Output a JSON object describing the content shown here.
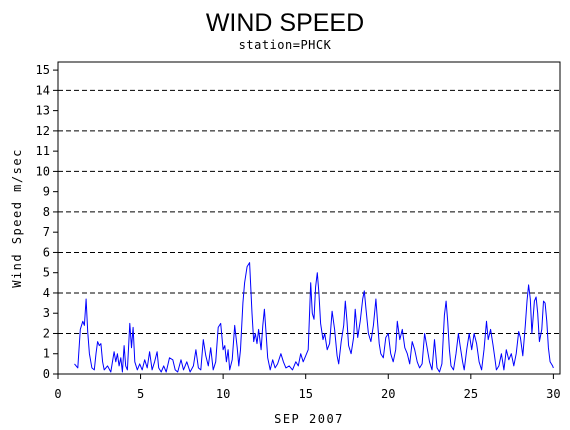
{
  "chart_data": {
    "type": "line",
    "title": "WIND SPEED",
    "subtitle": "station=PHCK",
    "xlabel": "SEP 2007",
    "ylabel": "Wind Speed m/sec",
    "xlim": [
      0,
      30.4
    ],
    "ylim": [
      0,
      15.4
    ],
    "x_ticks": [
      0,
      5,
      10,
      15,
      20,
      25,
      30
    ],
    "y_ticks": [
      0,
      1,
      2,
      3,
      4,
      5,
      6,
      7,
      8,
      9,
      10,
      11,
      12,
      13,
      14,
      15
    ],
    "reference_lines": [
      2,
      4,
      6,
      8,
      10,
      12,
      14
    ],
    "grid": "dashed horizontal reference lines at even values",
    "series": [
      {
        "color": "#0000ff",
        "points": [
          [
            1.0,
            0.5
          ],
          [
            1.2,
            0.3
          ],
          [
            1.35,
            2.2
          ],
          [
            1.5,
            2.6
          ],
          [
            1.6,
            2.4
          ],
          [
            1.7,
            3.7
          ],
          [
            1.8,
            2.1
          ],
          [
            1.9,
            1.0
          ],
          [
            2.05,
            0.3
          ],
          [
            2.2,
            0.2
          ],
          [
            2.3,
            1.0
          ],
          [
            2.4,
            1.6
          ],
          [
            2.5,
            1.4
          ],
          [
            2.6,
            1.5
          ],
          [
            2.7,
            0.6
          ],
          [
            2.8,
            0.2
          ],
          [
            3.0,
            0.4
          ],
          [
            3.2,
            0.1
          ],
          [
            3.4,
            1.1
          ],
          [
            3.5,
            0.6
          ],
          [
            3.6,
            1.0
          ],
          [
            3.7,
            0.4
          ],
          [
            3.8,
            0.8
          ],
          [
            3.9,
            0.1
          ],
          [
            4.0,
            1.4
          ],
          [
            4.1,
            0.4
          ],
          [
            4.2,
            0.2
          ],
          [
            4.35,
            2.5
          ],
          [
            4.45,
            1.3
          ],
          [
            4.55,
            2.3
          ],
          [
            4.65,
            0.6
          ],
          [
            4.8,
            0.2
          ],
          [
            4.95,
            0.5
          ],
          [
            5.1,
            0.2
          ],
          [
            5.25,
            0.7
          ],
          [
            5.4,
            0.3
          ],
          [
            5.55,
            1.1
          ],
          [
            5.7,
            0.2
          ],
          [
            5.85,
            0.6
          ],
          [
            6.0,
            1.1
          ],
          [
            6.1,
            0.3
          ],
          [
            6.25,
            0.1
          ],
          [
            6.4,
            0.4
          ],
          [
            6.55,
            0.1
          ],
          [
            6.75,
            0.8
          ],
          [
            6.95,
            0.7
          ],
          [
            7.1,
            0.2
          ],
          [
            7.25,
            0.1
          ],
          [
            7.45,
            0.7
          ],
          [
            7.6,
            0.2
          ],
          [
            7.8,
            0.6
          ],
          [
            8.0,
            0.1
          ],
          [
            8.2,
            0.4
          ],
          [
            8.35,
            1.2
          ],
          [
            8.5,
            0.3
          ],
          [
            8.65,
            0.2
          ],
          [
            8.8,
            1.7
          ],
          [
            8.95,
            0.9
          ],
          [
            9.1,
            0.4
          ],
          [
            9.25,
            1.3
          ],
          [
            9.4,
            0.2
          ],
          [
            9.55,
            0.6
          ],
          [
            9.7,
            2.3
          ],
          [
            9.85,
            2.5
          ],
          [
            10.0,
            1.2
          ],
          [
            10.1,
            1.4
          ],
          [
            10.2,
            0.6
          ],
          [
            10.3,
            1.2
          ],
          [
            10.4,
            0.2
          ],
          [
            10.55,
            0.7
          ],
          [
            10.7,
            2.4
          ],
          [
            10.85,
            1.3
          ],
          [
            10.95,
            0.4
          ],
          [
            11.05,
            1.2
          ],
          [
            11.2,
            3.5
          ],
          [
            11.3,
            4.5
          ],
          [
            11.45,
            5.3
          ],
          [
            11.6,
            5.5
          ],
          [
            11.75,
            3.0
          ],
          [
            11.85,
            1.6
          ],
          [
            11.95,
            2.0
          ],
          [
            12.05,
            1.5
          ],
          [
            12.15,
            2.2
          ],
          [
            12.3,
            1.2
          ],
          [
            12.4,
            2.4
          ],
          [
            12.5,
            3.2
          ],
          [
            12.6,
            2.0
          ],
          [
            12.7,
            0.8
          ],
          [
            12.85,
            0.2
          ],
          [
            13.0,
            0.7
          ],
          [
            13.15,
            0.3
          ],
          [
            13.3,
            0.5
          ],
          [
            13.5,
            1.0
          ],
          [
            13.65,
            0.6
          ],
          [
            13.8,
            0.3
          ],
          [
            14.0,
            0.4
          ],
          [
            14.2,
            0.2
          ],
          [
            14.4,
            0.6
          ],
          [
            14.55,
            0.4
          ],
          [
            14.7,
            1.0
          ],
          [
            14.85,
            0.6
          ],
          [
            15.0,
            0.9
          ],
          [
            15.15,
            1.2
          ],
          [
            15.3,
            4.5
          ],
          [
            15.4,
            3.0
          ],
          [
            15.5,
            2.7
          ],
          [
            15.6,
            4.3
          ],
          [
            15.7,
            5.0
          ],
          [
            15.8,
            4.0
          ],
          [
            15.9,
            2.5
          ],
          [
            16.05,
            1.7
          ],
          [
            16.15,
            2.0
          ],
          [
            16.3,
            1.2
          ],
          [
            16.45,
            1.5
          ],
          [
            16.6,
            3.1
          ],
          [
            16.75,
            2.2
          ],
          [
            16.9,
            0.9
          ],
          [
            17.0,
            0.5
          ],
          [
            17.15,
            1.6
          ],
          [
            17.3,
            2.4
          ],
          [
            17.4,
            3.6
          ],
          [
            17.5,
            2.6
          ],
          [
            17.6,
            1.4
          ],
          [
            17.75,
            1.0
          ],
          [
            17.9,
            1.8
          ],
          [
            18.0,
            3.2
          ],
          [
            18.15,
            1.8
          ],
          [
            18.3,
            2.6
          ],
          [
            18.45,
            3.7
          ],
          [
            18.55,
            4.1
          ],
          [
            18.65,
            3.2
          ],
          [
            18.8,
            2.0
          ],
          [
            18.95,
            1.6
          ],
          [
            19.1,
            2.4
          ],
          [
            19.25,
            3.7
          ],
          [
            19.35,
            2.6
          ],
          [
            19.45,
            1.5
          ],
          [
            19.55,
            1.0
          ],
          [
            19.7,
            0.8
          ],
          [
            19.85,
            1.8
          ],
          [
            20.0,
            2.0
          ],
          [
            20.15,
            1.0
          ],
          [
            20.3,
            0.6
          ],
          [
            20.45,
            1.2
          ],
          [
            20.55,
            2.6
          ],
          [
            20.7,
            1.7
          ],
          [
            20.85,
            2.2
          ],
          [
            21.0,
            1.3
          ],
          [
            21.15,
            1.0
          ],
          [
            21.3,
            0.5
          ],
          [
            21.45,
            1.6
          ],
          [
            21.6,
            1.2
          ],
          [
            21.75,
            0.6
          ],
          [
            21.9,
            0.3
          ],
          [
            22.05,
            0.5
          ],
          [
            22.2,
            2.0
          ],
          [
            22.35,
            1.3
          ],
          [
            22.5,
            0.6
          ],
          [
            22.65,
            0.2
          ],
          [
            22.8,
            1.7
          ],
          [
            22.95,
            0.3
          ],
          [
            23.1,
            0.1
          ],
          [
            23.25,
            0.5
          ],
          [
            23.4,
            2.9
          ],
          [
            23.5,
            3.6
          ],
          [
            23.6,
            2.6
          ],
          [
            23.7,
            1.2
          ],
          [
            23.8,
            0.4
          ],
          [
            23.95,
            0.2
          ],
          [
            24.1,
            1.0
          ],
          [
            24.25,
            2.0
          ],
          [
            24.35,
            1.4
          ],
          [
            24.5,
            0.6
          ],
          [
            24.6,
            0.2
          ],
          [
            24.75,
            1.2
          ],
          [
            24.9,
            2.0
          ],
          [
            25.05,
            1.2
          ],
          [
            25.2,
            2.0
          ],
          [
            25.35,
            1.5
          ],
          [
            25.5,
            0.6
          ],
          [
            25.65,
            0.2
          ],
          [
            25.8,
            1.2
          ],
          [
            25.95,
            2.6
          ],
          [
            26.05,
            1.7
          ],
          [
            26.2,
            2.2
          ],
          [
            26.35,
            1.4
          ],
          [
            26.45,
            0.8
          ],
          [
            26.55,
            0.2
          ],
          [
            26.7,
            0.4
          ],
          [
            26.85,
            1.0
          ],
          [
            27.0,
            0.2
          ],
          [
            27.15,
            1.2
          ],
          [
            27.3,
            0.7
          ],
          [
            27.45,
            1.0
          ],
          [
            27.6,
            0.4
          ],
          [
            27.75,
            1.0
          ],
          [
            27.9,
            2.1
          ],
          [
            28.0,
            1.8
          ],
          [
            28.15,
            0.9
          ],
          [
            28.3,
            2.4
          ],
          [
            28.4,
            3.6
          ],
          [
            28.5,
            4.4
          ],
          [
            28.6,
            3.7
          ],
          [
            28.7,
            2.0
          ],
          [
            28.85,
            3.6
          ],
          [
            28.95,
            3.8
          ],
          [
            29.05,
            3.0
          ],
          [
            29.15,
            1.6
          ],
          [
            29.3,
            2.2
          ],
          [
            29.4,
            3.6
          ],
          [
            29.5,
            3.5
          ],
          [
            29.6,
            2.6
          ],
          [
            29.7,
            1.3
          ],
          [
            29.8,
            0.6
          ],
          [
            29.95,
            0.4
          ],
          [
            30.0,
            0.3
          ]
        ]
      }
    ]
  }
}
